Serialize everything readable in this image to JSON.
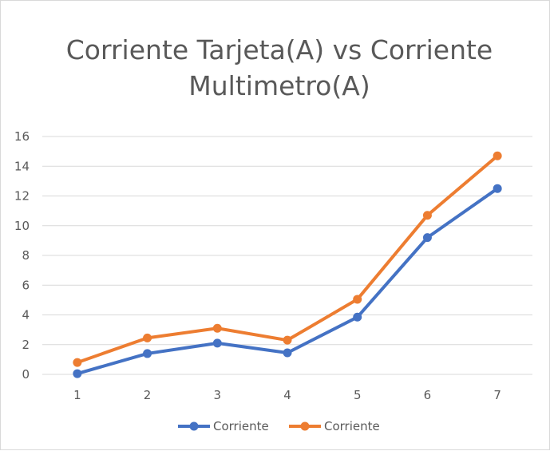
{
  "chart_data": {
    "type": "line",
    "title": "Corriente Tarjeta(A) vs Corriente Multimetro(A)",
    "title_lines": [
      "Corriente Tarjeta(A) vs Corriente",
      "Multimetro(A)"
    ],
    "categories": [
      "1",
      "2",
      "3",
      "4",
      "5",
      "6",
      "7"
    ],
    "y_ticks": [
      "0",
      "2",
      "4",
      "6",
      "8",
      "10",
      "12",
      "14",
      "16"
    ],
    "ylim": [
      0,
      16
    ],
    "grid": true,
    "legend_position": "bottom",
    "series": [
      {
        "name": "Corriente",
        "color": "#4472c4",
        "values": [
          0.05,
          1.4,
          2.1,
          1.45,
          3.85,
          9.2,
          12.5
        ]
      },
      {
        "name": "Corriente",
        "color": "#ed7d31",
        "values": [
          0.8,
          2.45,
          3.1,
          2.3,
          5.05,
          10.7,
          14.7
        ]
      }
    ]
  }
}
